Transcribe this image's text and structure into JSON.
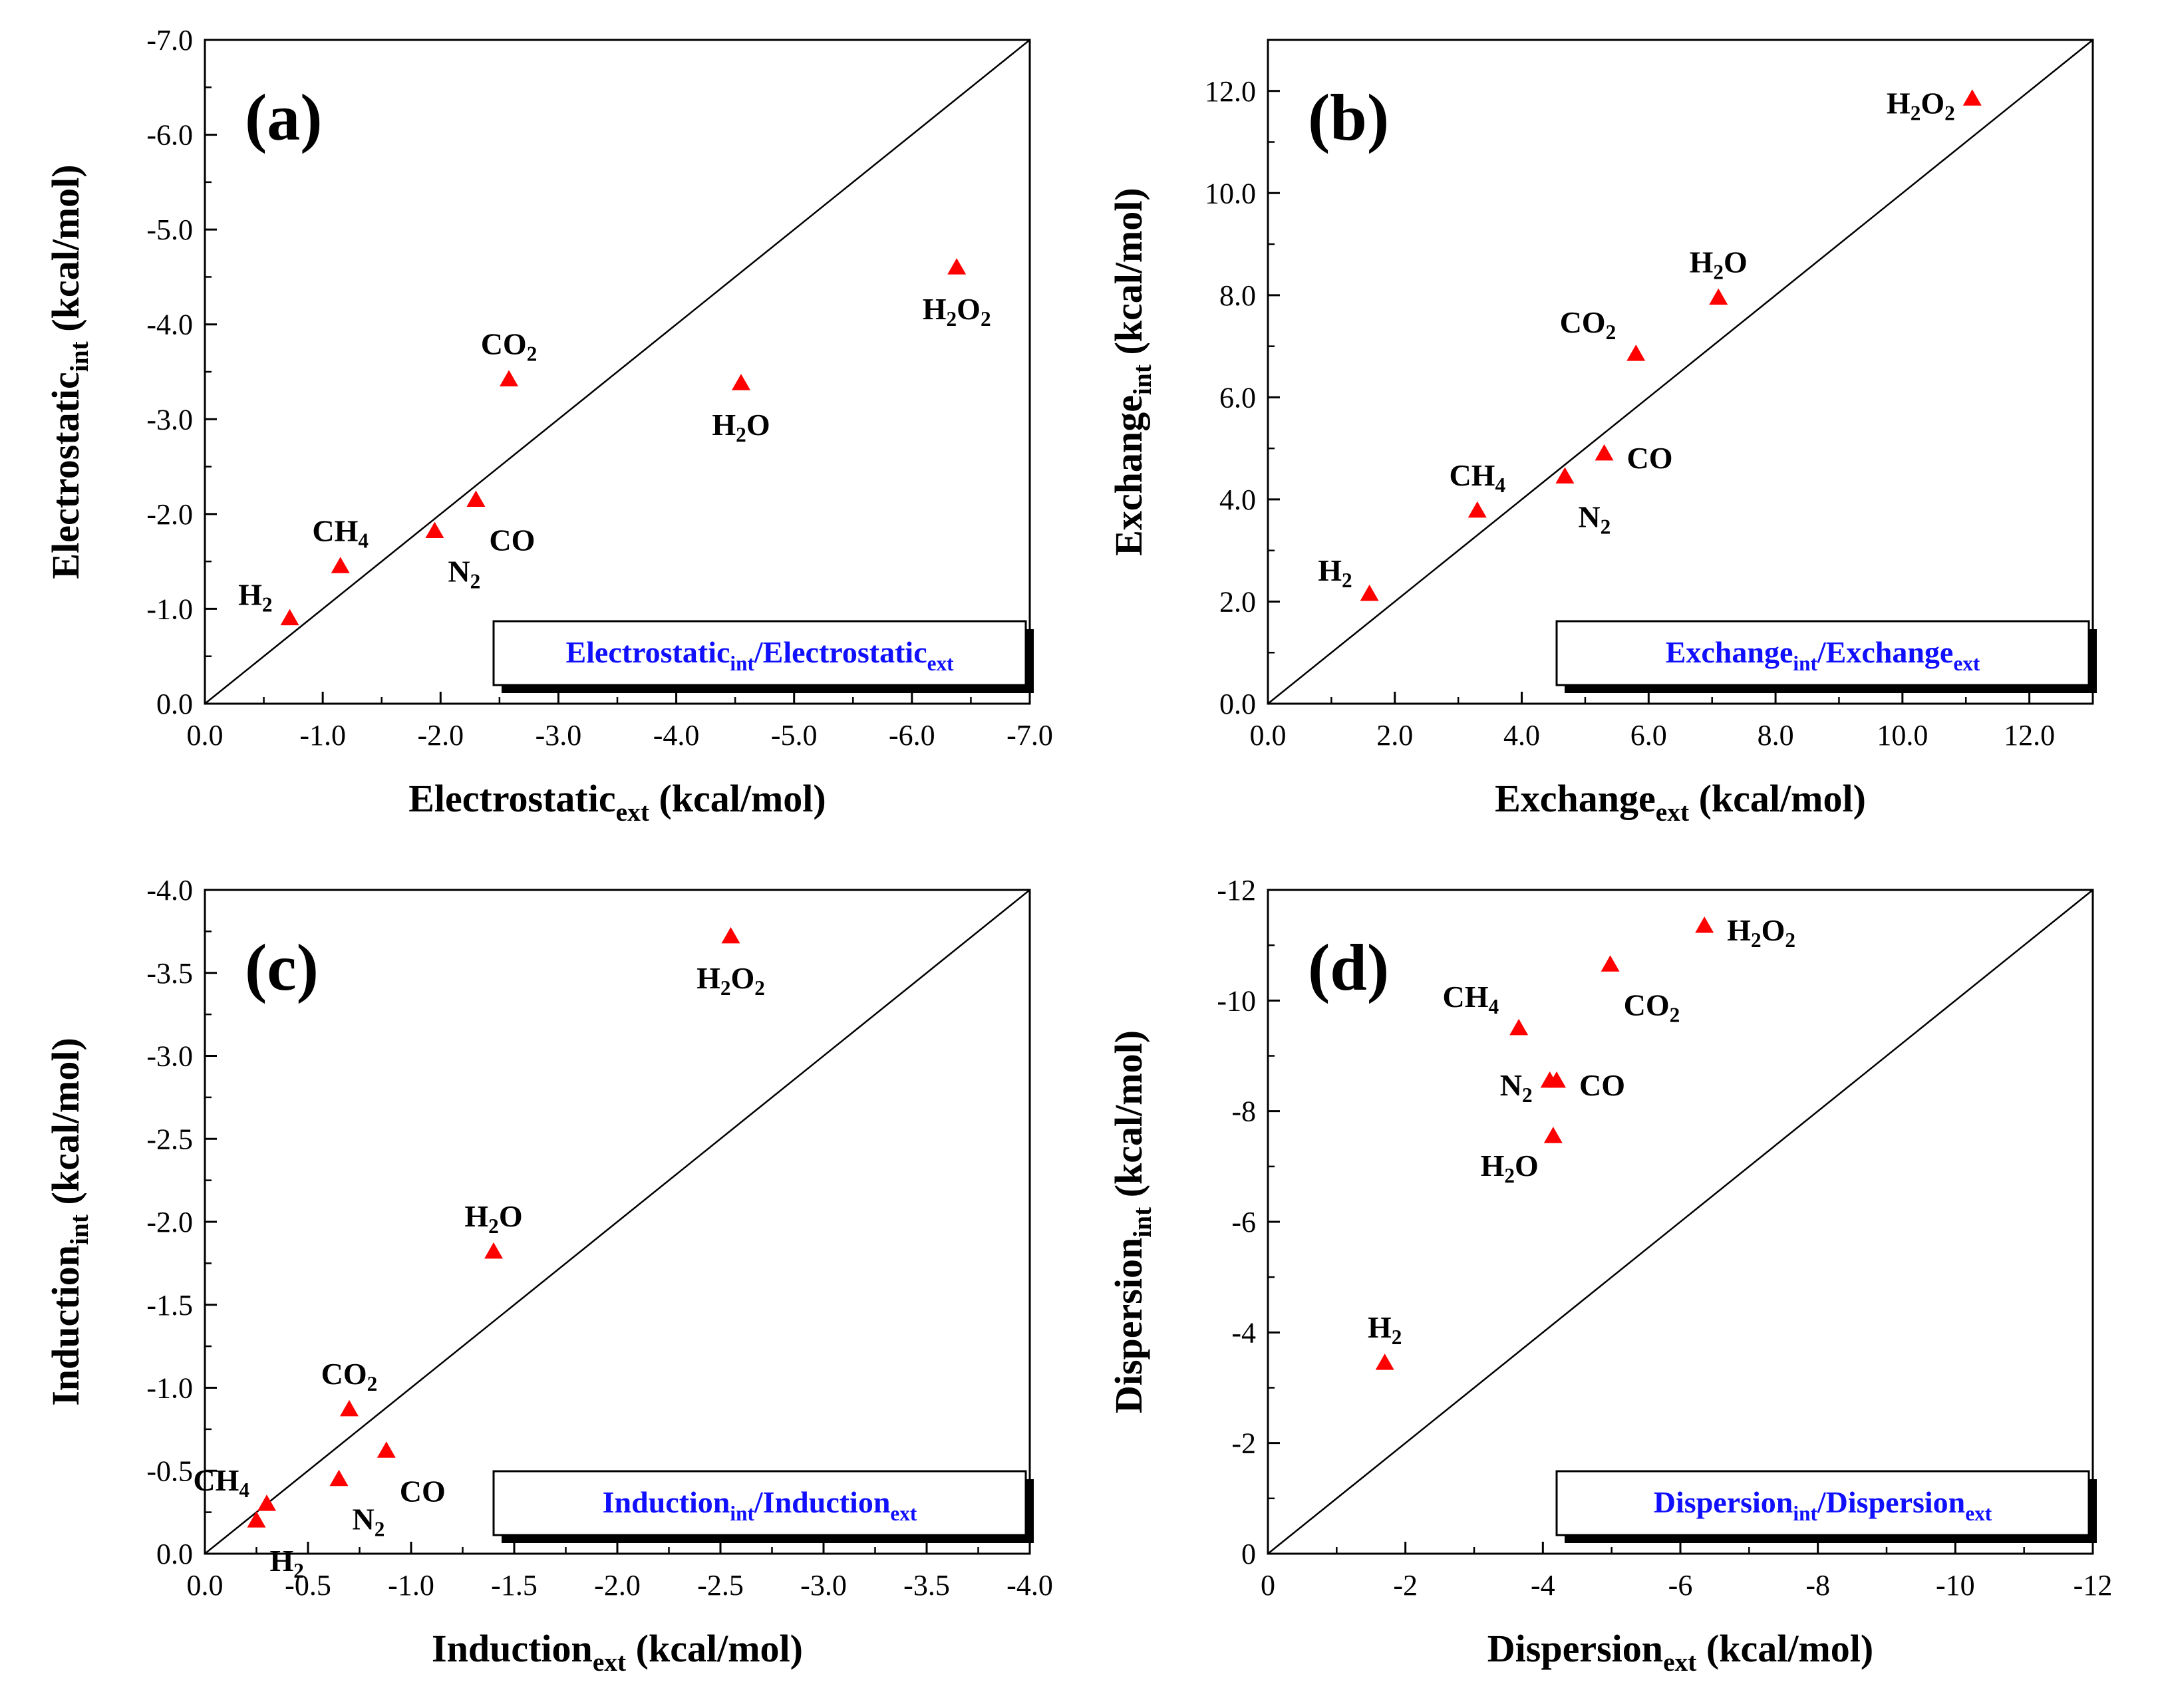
{
  "chart_data": [
    {
      "type": "scatter",
      "panel_label": "(a)",
      "xlabel": {
        "main": "Electrostatic",
        "sub": "ext",
        "rest": " (kcal/mol)"
      },
      "ylabel": {
        "main": "Electrostatic",
        "sub": "int",
        "rest": " (kcal/mol)"
      },
      "legend": {
        "a": "Electrostatic",
        "a_sub": "int",
        "sep": "/",
        "b": "Electrostatic",
        "b_sub": "ext",
        "placement": "bottom-right"
      },
      "xlim": [
        0,
        -7
      ],
      "ylim": [
        0,
        -7
      ],
      "ticks": [
        0,
        -1,
        -2,
        -3,
        -4,
        -5,
        -6,
        -7
      ],
      "tick_labels": [
        "0.0",
        "-1.0",
        "-2.0",
        "-3.0",
        "-4.0",
        "-5.0",
        "-6.0",
        "-7.0"
      ],
      "diagonal": true,
      "points": [
        {
          "label": "H2",
          "x": -0.72,
          "y": -0.9,
          "pos": "upper-left"
        },
        {
          "label": "CH4",
          "x": -1.15,
          "y": -1.45,
          "pos": "above"
        },
        {
          "label": "N2",
          "x": -1.95,
          "y": -1.82,
          "pos": "below-right"
        },
        {
          "label": "CO",
          "x": -2.3,
          "y": -2.15,
          "pos": "below-right"
        },
        {
          "label": "CO2",
          "x": -2.58,
          "y": -3.42,
          "pos": "above"
        },
        {
          "label": "H2O",
          "x": -4.55,
          "y": -3.38,
          "pos": "below"
        },
        {
          "label": "H2O2",
          "x": -6.38,
          "y": -4.6,
          "pos": "below"
        }
      ]
    },
    {
      "type": "scatter",
      "panel_label": "(b)",
      "xlabel": {
        "main": "Exchange",
        "sub": "ext",
        "rest": " (kcal/mol)"
      },
      "ylabel": {
        "main": "Exchange",
        "sub": "int",
        "rest": " (kcal/mol)"
      },
      "legend": {
        "a": "Exchange",
        "a_sub": "int",
        "sep": "/",
        "b": "Exchange",
        "b_sub": "ext",
        "placement": "bottom-right"
      },
      "xlim": [
        0,
        13
      ],
      "ylim": [
        0,
        13
      ],
      "ticks": [
        0,
        2,
        4,
        6,
        8,
        10,
        12
      ],
      "tick_labels": [
        "0.0",
        "2.0",
        "4.0",
        "6.0",
        "8.0",
        "10.0",
        "12.0"
      ],
      "diagonal": true,
      "points": [
        {
          "label": "H2",
          "x": 1.6,
          "y": 2.15,
          "pos": "upper-left"
        },
        {
          "label": "CH4",
          "x": 3.3,
          "y": 3.78,
          "pos": "above"
        },
        {
          "label": "N2",
          "x": 4.68,
          "y": 4.45,
          "pos": "below-right"
        },
        {
          "label": "CO",
          "x": 5.3,
          "y": 4.9,
          "pos": "right"
        },
        {
          "label": "CO2",
          "x": 5.8,
          "y": 6.85,
          "pos": "above-left"
        },
        {
          "label": "H2O",
          "x": 7.1,
          "y": 7.95,
          "pos": "above"
        },
        {
          "label": "H2O2",
          "x": 11.1,
          "y": 11.85,
          "pos": "left"
        }
      ]
    },
    {
      "type": "scatter",
      "panel_label": "(c)",
      "xlabel": {
        "main": "Induction",
        "sub": "ext",
        "rest": " (kcal/mol)"
      },
      "ylabel": {
        "main": "Induction",
        "sub": "int",
        "rest": " (kcal/mol)"
      },
      "legend": {
        "a": "Induction",
        "a_sub": "int",
        "sep": "/",
        "b": "Induction",
        "b_sub": "ext",
        "placement": "bottom-right"
      },
      "xlim": [
        0,
        -4
      ],
      "ylim": [
        0,
        -4
      ],
      "ticks": [
        0,
        -0.5,
        -1,
        -1.5,
        -2,
        -2.5,
        -3,
        -3.5,
        -4
      ],
      "tick_labels": [
        "0.0",
        "-0.5",
        "-1.0",
        "-1.5",
        "-2.0",
        "-2.5",
        "-3.0",
        "-3.5",
        "-4.0"
      ],
      "diagonal": true,
      "points": [
        {
          "label": "H2",
          "x": -0.25,
          "y": -0.2,
          "pos": "below-right"
        },
        {
          "label": "CH4",
          "x": -0.3,
          "y": -0.3,
          "pos": "upper-left"
        },
        {
          "label": "N2",
          "x": -0.65,
          "y": -0.45,
          "pos": "below-right"
        },
        {
          "label": "CO",
          "x": -0.88,
          "y": -0.62,
          "pos": "below-right"
        },
        {
          "label": "CO2",
          "x": -0.7,
          "y": -0.87,
          "pos": "above"
        },
        {
          "label": "H2O",
          "x": -1.4,
          "y": -1.82,
          "pos": "above"
        },
        {
          "label": "H2O2",
          "x": -2.55,
          "y": -3.72,
          "pos": "below"
        }
      ]
    },
    {
      "type": "scatter",
      "panel_label": "(d)",
      "xlabel": {
        "main": "Dispersion",
        "sub": "ext",
        "rest": " (kcal/mol)"
      },
      "ylabel": {
        "main": "Dispersion",
        "sub": "int",
        "rest": " (kcal/mol)"
      },
      "legend": {
        "a": "Dispersion",
        "a_sub": "int",
        "sep": "/",
        "b": "Dispersion",
        "b_sub": "ext",
        "placement": "bottom-right"
      },
      "xlim": [
        0,
        -12
      ],
      "ylim": [
        0,
        -12
      ],
      "ticks": [
        0,
        -2,
        -4,
        -6,
        -8,
        -10,
        -12
      ],
      "tick_labels": [
        "0",
        "-2",
        "-4",
        "-6",
        "-8",
        "-10",
        "-12"
      ],
      "diagonal": true,
      "points": [
        {
          "label": "H2",
          "x": -1.7,
          "y": -3.45,
          "pos": "above"
        },
        {
          "label": "CH4",
          "x": -3.65,
          "y": -9.5,
          "pos": "above-left"
        },
        {
          "label": "N2",
          "x": -4.1,
          "y": -8.55,
          "pos": "left"
        },
        {
          "label": "CO",
          "x": -4.2,
          "y": -8.55,
          "pos": "right"
        },
        {
          "label": "H2O",
          "x": -4.15,
          "y": -7.55,
          "pos": "below-left"
        },
        {
          "label": "CO2",
          "x": -4.98,
          "y": -10.65,
          "pos": "below-right"
        },
        {
          "label": "H2O2",
          "x": -6.35,
          "y": -11.35,
          "pos": "right"
        }
      ]
    }
  ]
}
